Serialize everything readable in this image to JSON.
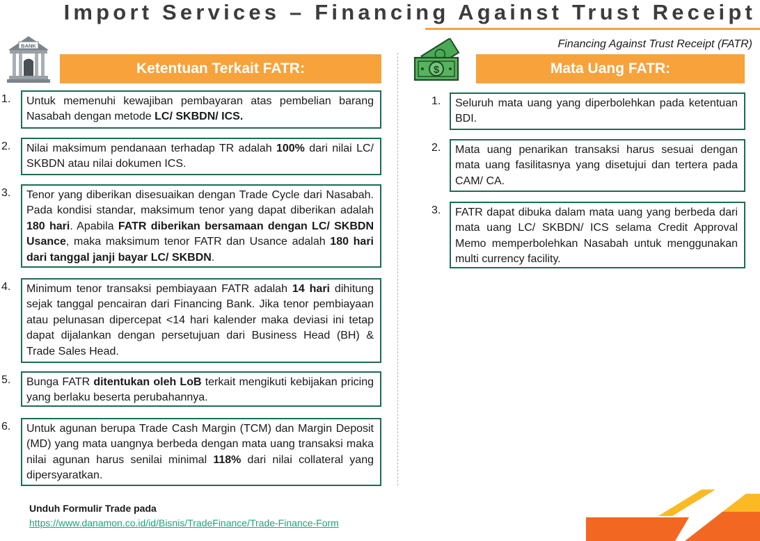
{
  "header": {
    "title": "Import Services – Financing Against Trust Receipt",
    "subtitle": "Financing Against Trust Receipt (FATR)"
  },
  "left": {
    "heading": "Ketentuan Terkait FATR:",
    "bank_label": "BANK",
    "items": [
      {
        "num": "1.",
        "parts": [
          {
            "t": "Untuk memenuhi kewajiban pembayaran atas pembelian barang Nasabah dengan metode "
          },
          {
            "t": "LC/ SKBDN/ ICS.",
            "b": true
          }
        ]
      },
      {
        "num": "2.",
        "parts": [
          {
            "t": "Nilai maksimum pendanaan terhadap TR adalah "
          },
          {
            "t": "100%",
            "b": true
          },
          {
            "t": " dari nilai LC/ SKBDN atau nilai dokumen ICS."
          }
        ]
      },
      {
        "num": "3.",
        "parts": [
          {
            "t": "Tenor yang diberikan disesuaikan dengan Trade Cycle dari Nasabah. Pada kondisi standar, maksimum tenor yang dapat diberikan adalah "
          },
          {
            "t": "180 hari",
            "b": true
          },
          {
            "t": ". Apabila "
          },
          {
            "t": "FATR diberikan bersamaan dengan LC/ SKBDN Usance",
            "b": true
          },
          {
            "t": ", maka maksimum tenor FATR dan Usance adalah "
          },
          {
            "t": "180 hari dari tanggal janji bayar LC/ SKBDN",
            "b": true
          },
          {
            "t": "."
          }
        ]
      },
      {
        "num": "4.",
        "parts": [
          {
            "t": "Minimum tenor transaksi pembiayaan FATR adalah "
          },
          {
            "t": "14 hari",
            "b": true
          },
          {
            "t": " dihitung sejak tanggal pencairan dari Financing Bank. Jika tenor pembiayaan atau pelunasan dipercepat <14 hari kalender maka deviasi ini tetap dapat dijalankan dengan persetujuan dari Business Head (BH) & Trade Sales Head."
          }
        ]
      },
      {
        "num": "5.",
        "parts": [
          {
            "t": "Bunga FATR "
          },
          {
            "t": "ditentukan oleh LoB",
            "b": true
          },
          {
            "t": " terkait mengikuti kebijakan pricing yang berlaku beserta perubahannya."
          }
        ]
      },
      {
        "num": "6.",
        "parts": [
          {
            "t": "Untuk agunan berupa Trade Cash Margin (TCM) dan Margin Deposit (MD) yang mata uangnya berbeda dengan mata uang transaksi maka nilai agunan harus senilai minimal "
          },
          {
            "t": "118%",
            "b": true
          },
          {
            "t": " dari nilai collateral yang dipersyaratkan."
          }
        ]
      }
    ]
  },
  "right": {
    "heading": "Mata Uang FATR:",
    "items": [
      {
        "num": "1.",
        "parts": [
          {
            "t": "Seluruh mata uang yang diperbolehkan pada ketentuan BDI."
          }
        ]
      },
      {
        "num": "2.",
        "parts": [
          {
            "t": "Mata uang penarikan transaksi harus sesuai dengan mata uang fasilitasnya yang disetujui dan tertera pada CAM/ CA."
          }
        ]
      },
      {
        "num": "3.",
        "parts": [
          {
            "t": "FATR dapat dibuka dalam mata uang yang berbeda dari mata uang LC/ SKBDN/ ICS selama Credit Approval Memo memperbolehkan Nasabah untuk menggunakan multi currency facility."
          }
        ]
      }
    ]
  },
  "footer": {
    "label": "Unduh Formulir Trade pada",
    "link": "https://www.danamon.co.id/id/Bisnis/TradeFinance/Trade-Finance-Form"
  },
  "colors": {
    "accent": "#f7a23b",
    "box_border": "#1e6b4f",
    "link": "#1fa37a",
    "brand_orange": "#f26722",
    "brand_yellow": "#fbb923"
  },
  "icons": {
    "left": "bank-icon",
    "right": "money-icon",
    "corner": "brand-logo"
  }
}
